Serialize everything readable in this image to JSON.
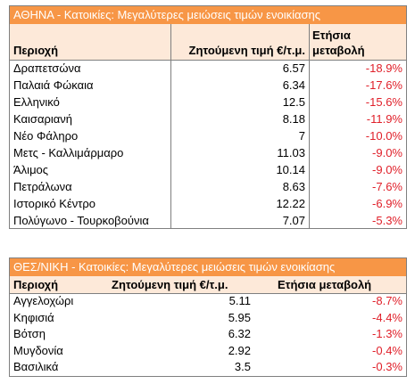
{
  "table1": {
    "title": "ΑΘΗΝΑ - Κατοικίες: Μεγαλύτερες μειώσεις τιμών ενοικίασης",
    "headers": {
      "area": "Περιοχή",
      "price": "Ζητούμενη τιμή €/τ.μ.",
      "change_line1": "Ετήσια",
      "change_line2": "μεταβολή"
    },
    "rows": [
      {
        "area": "Δραπετσώνα",
        "price": "6.57",
        "change": "-18.9%"
      },
      {
        "area": "Παλαιά Φώκαια",
        "price": "6.34",
        "change": "-17.6%"
      },
      {
        "area": "Ελληνικό",
        "price": "12.5",
        "change": "-15.6%"
      },
      {
        "area": "Καισαριανή",
        "price": "8.18",
        "change": "-11.9%"
      },
      {
        "area": "Νέο Φάληρο",
        "price": "7",
        "change": "-10.0%"
      },
      {
        "area": "Μετς - Καλλιμάρμαρο",
        "price": "11.03",
        "change": "-9.0%"
      },
      {
        "area": "Άλιμος",
        "price": "10.14",
        "change": "-9.0%"
      },
      {
        "area": "Πετράλωνα",
        "price": "8.63",
        "change": "-7.6%"
      },
      {
        "area": "Ιστορικό Κέντρο",
        "price": "12.22",
        "change": "-6.9%"
      },
      {
        "area": "Πολύγωνο - Τουρκοβούνια",
        "price": "7.07",
        "change": "-5.3%"
      }
    ]
  },
  "table2": {
    "title": "ΘΕΣ/ΝΙΚΗ - Κατοικίες: Μεγαλύτερες μειώσεις τιμών ενοικίασης",
    "headers": {
      "area": "Περιοχή",
      "price": "Ζητούμενη τιμή €/τ.μ.",
      "change": "Ετήσια μεταβολή"
    },
    "rows": [
      {
        "area": "Αγγελοχώρι",
        "price": "5.11",
        "change": "-8.7%"
      },
      {
        "area": "Κηφισιά",
        "price": "5.95",
        "change": "-4.4%"
      },
      {
        "area": "Βότση",
        "price": "6.32",
        "change": "-1.3%"
      },
      {
        "area": "Μυγδονία",
        "price": "2.92",
        "change": "-0.4%"
      },
      {
        "area": "Βασιλικά",
        "price": "3.5",
        "change": "-0.3%"
      }
    ]
  },
  "colors": {
    "title_bg": "#f79646",
    "header_bg": "#fde9d9",
    "negative": "#e0202a"
  }
}
